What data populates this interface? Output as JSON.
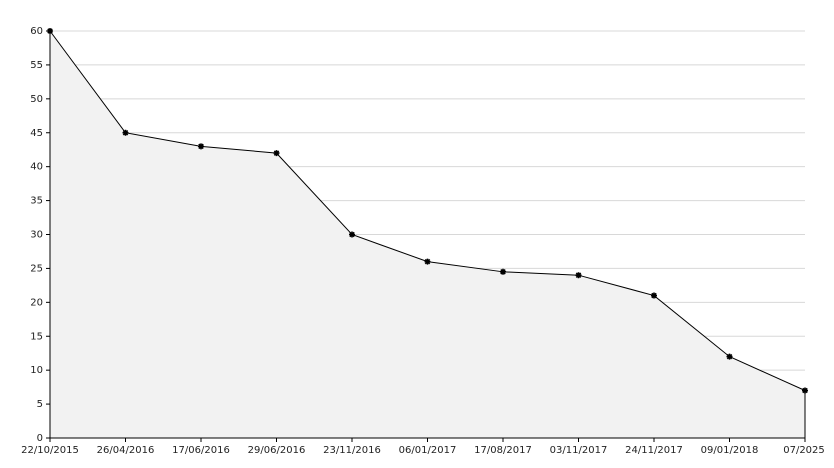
{
  "chart_data": {
    "type": "area",
    "categories": [
      "22/10/2015",
      "26/04/2016",
      "17/06/2016",
      "29/06/2016",
      "23/11/2016",
      "06/01/2017",
      "17/08/2017",
      "03/11/2017",
      "24/11/2017",
      "09/01/2018",
      "07/2025"
    ],
    "values": [
      60,
      45,
      43,
      42,
      30,
      26,
      24.5,
      24,
      21,
      12,
      7
    ],
    "color": "#000000",
    "fill": "#f2f2f2",
    "ylim": [
      0,
      60
    ],
    "yticks": [
      0,
      5,
      10,
      15,
      20,
      25,
      30,
      35,
      40,
      45,
      50,
      55,
      60
    ],
    "grid": true
  }
}
